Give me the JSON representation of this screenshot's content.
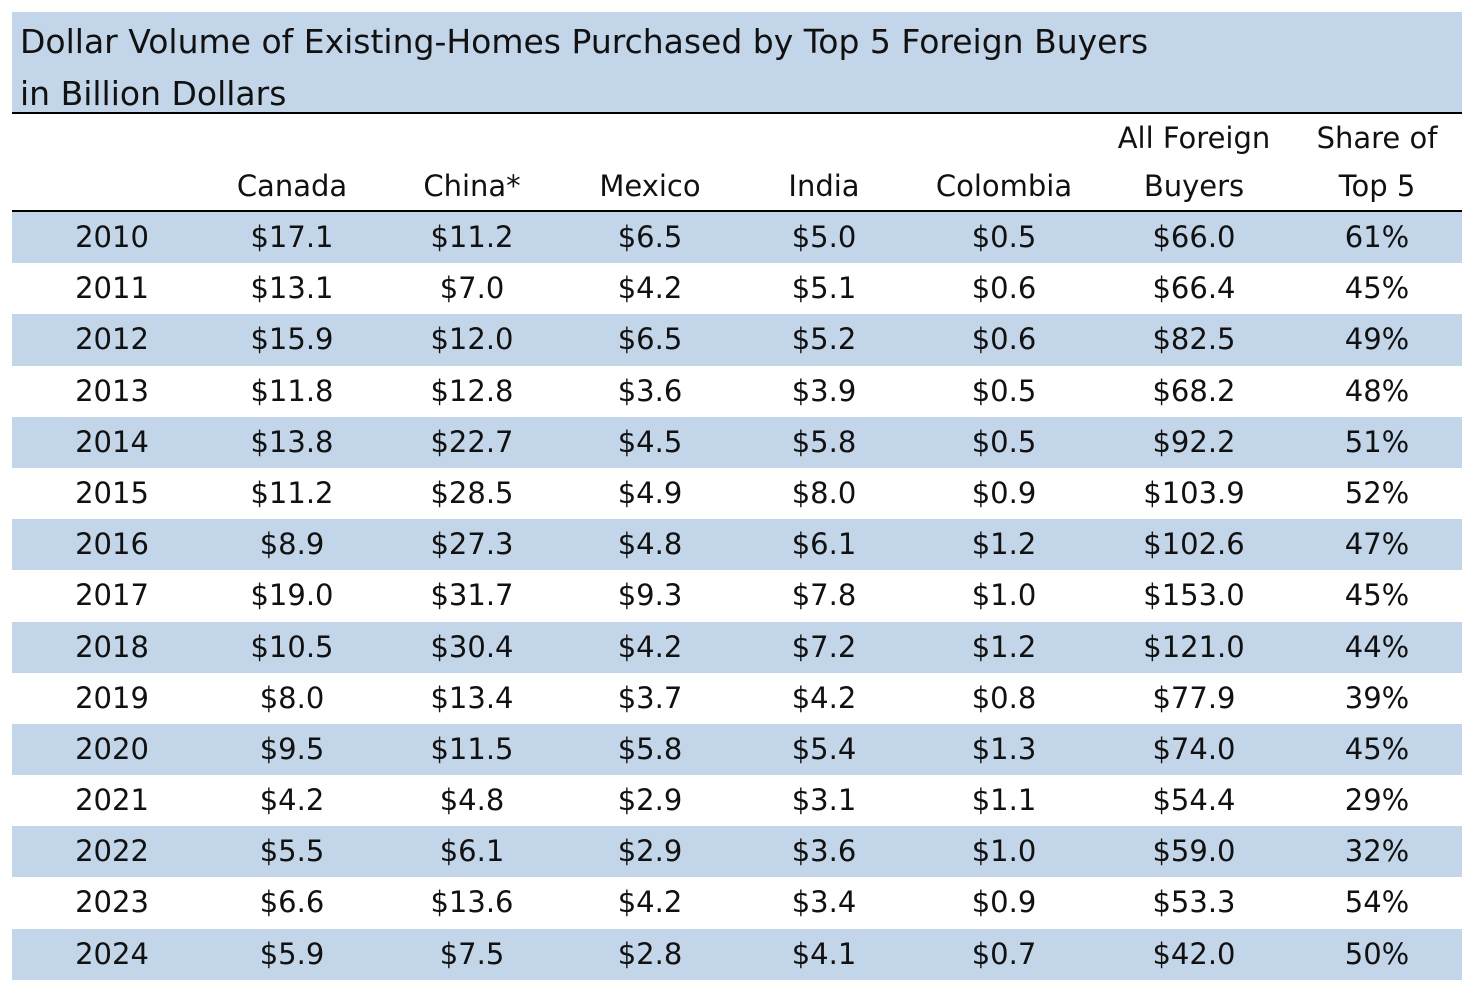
{
  "chart_data": {
    "type": "table",
    "title_line1": "Dollar Volume of Existing-Homes Purchased by Top 5 Foreign Buyers",
    "title_line2": "in Billion Dollars",
    "columns": [
      {
        "key": "year",
        "line1": "",
        "line2": ""
      },
      {
        "key": "canada",
        "line1": "",
        "line2": "Canada"
      },
      {
        "key": "china",
        "line1": "",
        "line2": "China*"
      },
      {
        "key": "mexico",
        "line1": "",
        "line2": "Mexico"
      },
      {
        "key": "india",
        "line1": "",
        "line2": "India"
      },
      {
        "key": "colombia",
        "line1": "",
        "line2": "Colombia"
      },
      {
        "key": "all_foreign",
        "line1": "All Foreign",
        "line2": "Buyers"
      },
      {
        "key": "share_top5",
        "line1": "Share of",
        "line2": "Top 5"
      }
    ],
    "rows": [
      [
        "2010",
        "$17.1",
        "$11.2",
        "$6.5",
        "$5.0",
        "$0.5",
        "$66.0",
        "61%"
      ],
      [
        "2011",
        "$13.1",
        "$7.0",
        "$4.2",
        "$5.1",
        "$0.6",
        "$66.4",
        "45%"
      ],
      [
        "2012",
        "$15.9",
        "$12.0",
        "$6.5",
        "$5.2",
        "$0.6",
        "$82.5",
        "49%"
      ],
      [
        "2013",
        "$11.8",
        "$12.8",
        "$3.6",
        "$3.9",
        "$0.5",
        "$68.2",
        "48%"
      ],
      [
        "2014",
        "$13.8",
        "$22.7",
        "$4.5",
        "$5.8",
        "$0.5",
        "$92.2",
        "51%"
      ],
      [
        "2015",
        "$11.2",
        "$28.5",
        "$4.9",
        "$8.0",
        "$0.9",
        "$103.9",
        "52%"
      ],
      [
        "2016",
        "$8.9",
        "$27.3",
        "$4.8",
        "$6.1",
        "$1.2",
        "$102.6",
        "47%"
      ],
      [
        "2017",
        "$19.0",
        "$31.7",
        "$9.3",
        "$7.8",
        "$1.0",
        "$153.0",
        "45%"
      ],
      [
        "2018",
        "$10.5",
        "$30.4",
        "$4.2",
        "$7.2",
        "$1.2",
        "$121.0",
        "44%"
      ],
      [
        "2019",
        "$8.0",
        "$13.4",
        "$3.7",
        "$4.2",
        "$0.8",
        "$77.9",
        "39%"
      ],
      [
        "2020",
        "$9.5",
        "$11.5",
        "$5.8",
        "$5.4",
        "$1.3",
        "$74.0",
        "45%"
      ],
      [
        "2021",
        "$4.2",
        "$4.8",
        "$2.9",
        "$3.1",
        "$1.1",
        "$54.4",
        "29%"
      ],
      [
        "2022",
        "$5.5",
        "$6.1",
        "$2.9",
        "$3.6",
        "$1.0",
        "$59.0",
        "32%"
      ],
      [
        "2023",
        "$6.6",
        "$13.6",
        "$4.2",
        "$3.4",
        "$0.9",
        "$53.3",
        "54%"
      ],
      [
        "2024",
        "$5.9",
        "$7.5",
        "$2.8",
        "$4.1",
        "$0.7",
        "$42.0",
        "50%"
      ]
    ]
  },
  "colors": {
    "band": "#c3d5e8",
    "rule": "#000000"
  }
}
